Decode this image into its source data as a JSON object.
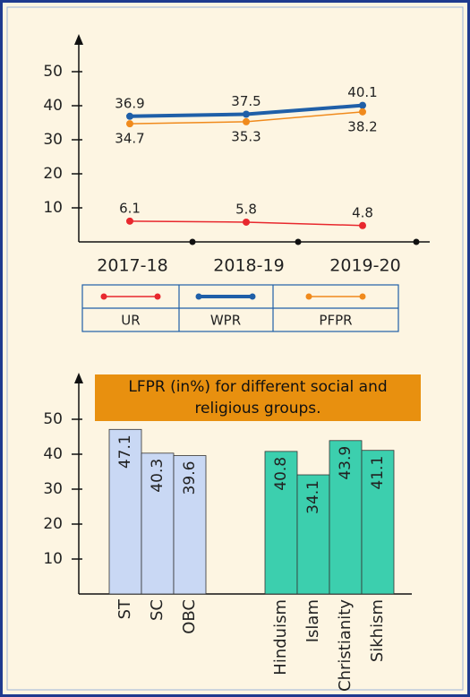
{
  "chart_data": [
    {
      "type": "line",
      "categories": [
        "2017-18",
        "2018-19",
        "2019-20"
      ],
      "series": [
        {
          "name": "UR",
          "color": "#e8282e",
          "values": [
            6.1,
            5.8,
            4.8
          ]
        },
        {
          "name": "WPR",
          "color": "#1f5fa8",
          "values": [
            36.9,
            37.5,
            40.1
          ]
        },
        {
          "name": "PFPR",
          "color": "#f08a1c",
          "values": [
            34.7,
            35.3,
            38.2
          ]
        }
      ],
      "ylim": [
        0,
        60
      ],
      "yticks": [
        10,
        20,
        30,
        40,
        50
      ],
      "legend": "bottom"
    },
    {
      "type": "bar",
      "title": "LFPR (in%) for different social and religious groups.",
      "categories": [
        "ST",
        "SC",
        "OBC",
        "Hinduism",
        "Islam",
        "Christianity",
        "Sikhism"
      ],
      "values": [
        47.1,
        40.3,
        39.6,
        40.8,
        34.1,
        43.9,
        41.1
      ],
      "colors": [
        "#c9d8f4",
        "#c9d8f4",
        "#c9d8f4",
        "#3ccfae",
        "#3ccfae",
        "#3ccfae",
        "#3ccfae"
      ],
      "ylim": [
        0,
        60
      ],
      "yticks": [
        10,
        20,
        30,
        40,
        50
      ]
    }
  ]
}
